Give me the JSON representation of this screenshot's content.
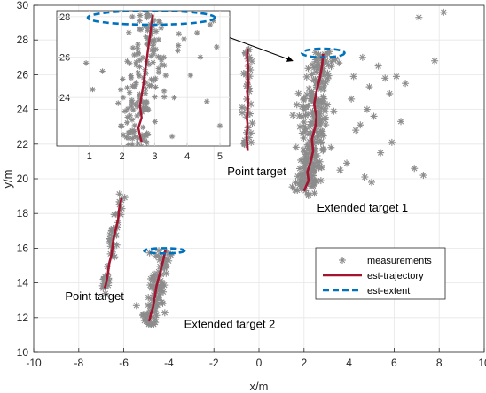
{
  "chart_data": {
    "type": "scatter",
    "xlabel": "x/m",
    "ylabel": "y/m",
    "xlim": [
      -10,
      10
    ],
    "ylim": [
      10,
      30
    ],
    "xticks": [
      -10,
      -8,
      -6,
      -4,
      -2,
      0,
      2,
      4,
      6,
      8,
      10
    ],
    "yticks": [
      10,
      12,
      14,
      16,
      18,
      20,
      22,
      24,
      26,
      28,
      30
    ],
    "grid": true,
    "legend_position": "bottom-right",
    "colors": {
      "measurements": "#8c8c8c",
      "trajectory": "#a2142f",
      "extent": "#0072bd",
      "axes": "#262626",
      "grid": "#e6e6e6"
    },
    "legend": [
      {
        "label": "measurements",
        "style": "star",
        "color": "#8c8c8c"
      },
      {
        "label": "est-trajectory",
        "style": "solid",
        "color": "#a2142f"
      },
      {
        "label": "est-extent",
        "style": "dashed",
        "color": "#0072bd"
      }
    ],
    "annotations": [
      {
        "text": "Point target",
        "x": -0.1,
        "y": 20.2
      },
      {
        "text": "Extended target 1",
        "x": 4.6,
        "y": 18.1
      },
      {
        "text": "Point target",
        "x": -7.3,
        "y": 13.0
      },
      {
        "text": "Extended target 2",
        "x": -1.3,
        "y": 11.4
      }
    ],
    "arrow": {
      "from": [
        -2.9,
        28.9
      ],
      "to": [
        1.5,
        26.8
      ]
    },
    "targets": [
      {
        "name": "Point target",
        "trajectory": {
          "x": [
            -0.5,
            -0.52,
            -0.48,
            -0.5,
            -0.47,
            -0.52,
            -0.48,
            -0.5,
            -0.53,
            -0.5,
            -0.55,
            -0.52,
            -0.5
          ],
          "y": [
            27.5,
            27.0,
            26.5,
            26.0,
            25.5,
            25.0,
            24.5,
            24.0,
            23.5,
            23.0,
            22.5,
            22.0,
            21.6
          ]
        },
        "spread": [
          0.2,
          0.35
        ],
        "n": 40
      },
      {
        "name": "Extended target 1",
        "trajectory": {
          "x": [
            2.85,
            2.8,
            2.7,
            2.55,
            2.45,
            2.55,
            2.5,
            2.35,
            2.4,
            2.3,
            2.15,
            2.2,
            2.0
          ],
          "y": [
            27.2,
            26.5,
            25.8,
            25.0,
            24.3,
            23.6,
            23.0,
            22.3,
            21.6,
            21.0,
            20.4,
            19.9,
            19.3
          ]
        },
        "spread": [
          0.5,
          0.4
        ],
        "n": 260
      },
      {
        "name": "Point target",
        "trajectory": {
          "x": [
            -6.1,
            -6.2,
            -6.25,
            -6.35,
            -6.45,
            -6.5,
            -6.55,
            -6.65,
            -6.7,
            -6.75,
            -6.8,
            -6.85
          ],
          "y": [
            18.9,
            18.3,
            17.7,
            17.1,
            16.6,
            16.1,
            15.6,
            15.1,
            14.6,
            14.2,
            13.9,
            13.7
          ]
        },
        "spread": [
          0.2,
          0.3
        ],
        "n": 45
      },
      {
        "name": "Extended target 2",
        "trajectory": {
          "x": [
            -4.15,
            -4.25,
            -4.35,
            -4.45,
            -4.55,
            -4.6,
            -4.65,
            -4.7,
            -4.8,
            -4.85,
            -4.9
          ],
          "y": [
            15.9,
            15.3,
            14.8,
            14.3,
            13.8,
            13.4,
            13.0,
            12.6,
            12.2,
            11.9,
            11.8
          ]
        },
        "spread": [
          0.35,
          0.3
        ],
        "n": 100
      }
    ],
    "extents": [
      {
        "cx": 2.85,
        "cy": 27.25,
        "rx": 0.95,
        "ry": 0.25
      },
      {
        "cx": -4.2,
        "cy": 15.85,
        "rx": 0.9,
        "ry": 0.15
      }
    ],
    "outliers": {
      "x": [
        7.1,
        8.2,
        7.8,
        4.6,
        5.3,
        4.9,
        5.6,
        6.1,
        6.5,
        5.8,
        4.8,
        5.1,
        6.3,
        4.3,
        3.9,
        3.6,
        4.7,
        7.3,
        6.9,
        4.2,
        3.4,
        5.4,
        5.0,
        4.1,
        3.2,
        5.9,
        4.5
      ],
      "y": [
        29.3,
        29.6,
        26.8,
        27.0,
        26.5,
        25.3,
        25.8,
        25.9,
        25.5,
        24.9,
        24.0,
        23.6,
        23.3,
        22.8,
        20.9,
        20.5,
        20.1,
        20.2,
        20.6,
        25.9,
        26.9,
        21.5,
        19.8,
        24.6,
        21.8,
        22.1,
        23.1
      ]
    },
    "inset": {
      "xlim": [
        0,
        5.3
      ],
      "ylim": [
        21.6,
        28.3
      ],
      "xticks": [
        1,
        2,
        3,
        4,
        5
      ],
      "yticks": [
        24,
        26,
        28
      ],
      "trajectory": {
        "x": [
          2.95,
          2.9,
          2.85,
          2.8,
          2.75,
          2.7,
          2.65,
          2.6,
          2.55,
          2.6,
          2.5,
          2.55,
          2.6
        ],
        "y": [
          28.1,
          27.6,
          27.0,
          26.4,
          25.8,
          25.2,
          24.6,
          24.1,
          23.6,
          23.0,
          22.5,
          22.1,
          21.8
        ]
      },
      "spread": [
        0.45,
        0.3
      ],
      "n": 160,
      "extent": {
        "cx": 2.9,
        "cy": 27.95,
        "rx": 1.95,
        "ry": 0.35
      },
      "outliers": {
        "x": [
          4.7,
          4.9,
          4.1,
          4.4,
          3.9,
          1.1,
          1.4,
          5.0,
          4.6,
          0.9,
          3.6,
          4.8,
          4.3
        ],
        "y": [
          27.6,
          26.5,
          25.1,
          26.0,
          26.9,
          24.4,
          25.3,
          22.6,
          23.8,
          25.7,
          24.0,
          27.8,
          27.2
        ]
      }
    }
  }
}
